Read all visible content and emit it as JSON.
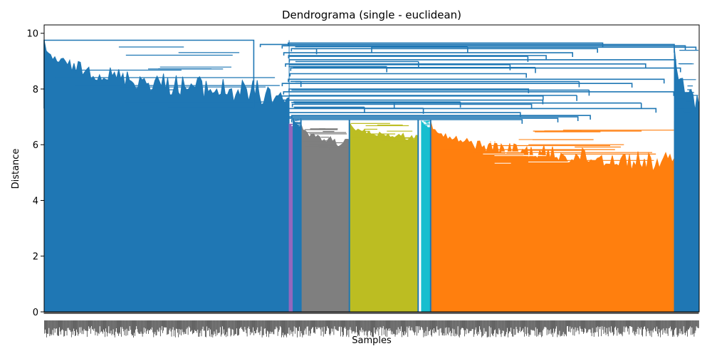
{
  "chart_data": {
    "type": "dendrogram",
    "title": "Dendrograma (single - euclidean)",
    "xlabel": "Samples",
    "ylabel": "Distance",
    "ylim": [
      0,
      10.3
    ],
    "yticks": [
      0,
      2,
      4,
      6,
      8,
      10
    ],
    "grid": false,
    "legend": "none",
    "linkage": "single",
    "metric": "euclidean",
    "clusters": [
      {
        "color": "#1f77b4",
        "leaf_share": [
          0.0,
          0.374
        ],
        "top": 9.75,
        "floor": 7.25
      },
      {
        "color": "#9467bd",
        "leaf_share": [
          0.374,
          0.38
        ],
        "top": 6.75,
        "floor": 6.6
      },
      {
        "color": "#1f77b4",
        "leaf_share": [
          0.38,
          0.392
        ],
        "top": 6.95,
        "floor": 6.6
      },
      {
        "color": "#7f7f7f",
        "leaf_share": [
          0.392,
          0.466
        ],
        "top": 6.75,
        "floor": 5.85
      },
      {
        "color": "#bcbd22",
        "leaf_share": [
          0.466,
          0.571
        ],
        "top": 6.8,
        "floor": 6.1
      },
      {
        "color": "#17becf",
        "leaf_share": [
          0.576,
          0.59
        ],
        "top": 6.85,
        "floor": 6.5
      },
      {
        "color": "#ff7f0e",
        "leaf_share": [
          0.59,
          0.962
        ],
        "top": 6.85,
        "floor": 4.95
      },
      {
        "color": "#1f77b4",
        "leaf_share": [
          0.962,
          1.0
        ],
        "top": 9.5,
        "floor": 7.0
      }
    ],
    "above_threshold_color": "#1f77b4"
  }
}
